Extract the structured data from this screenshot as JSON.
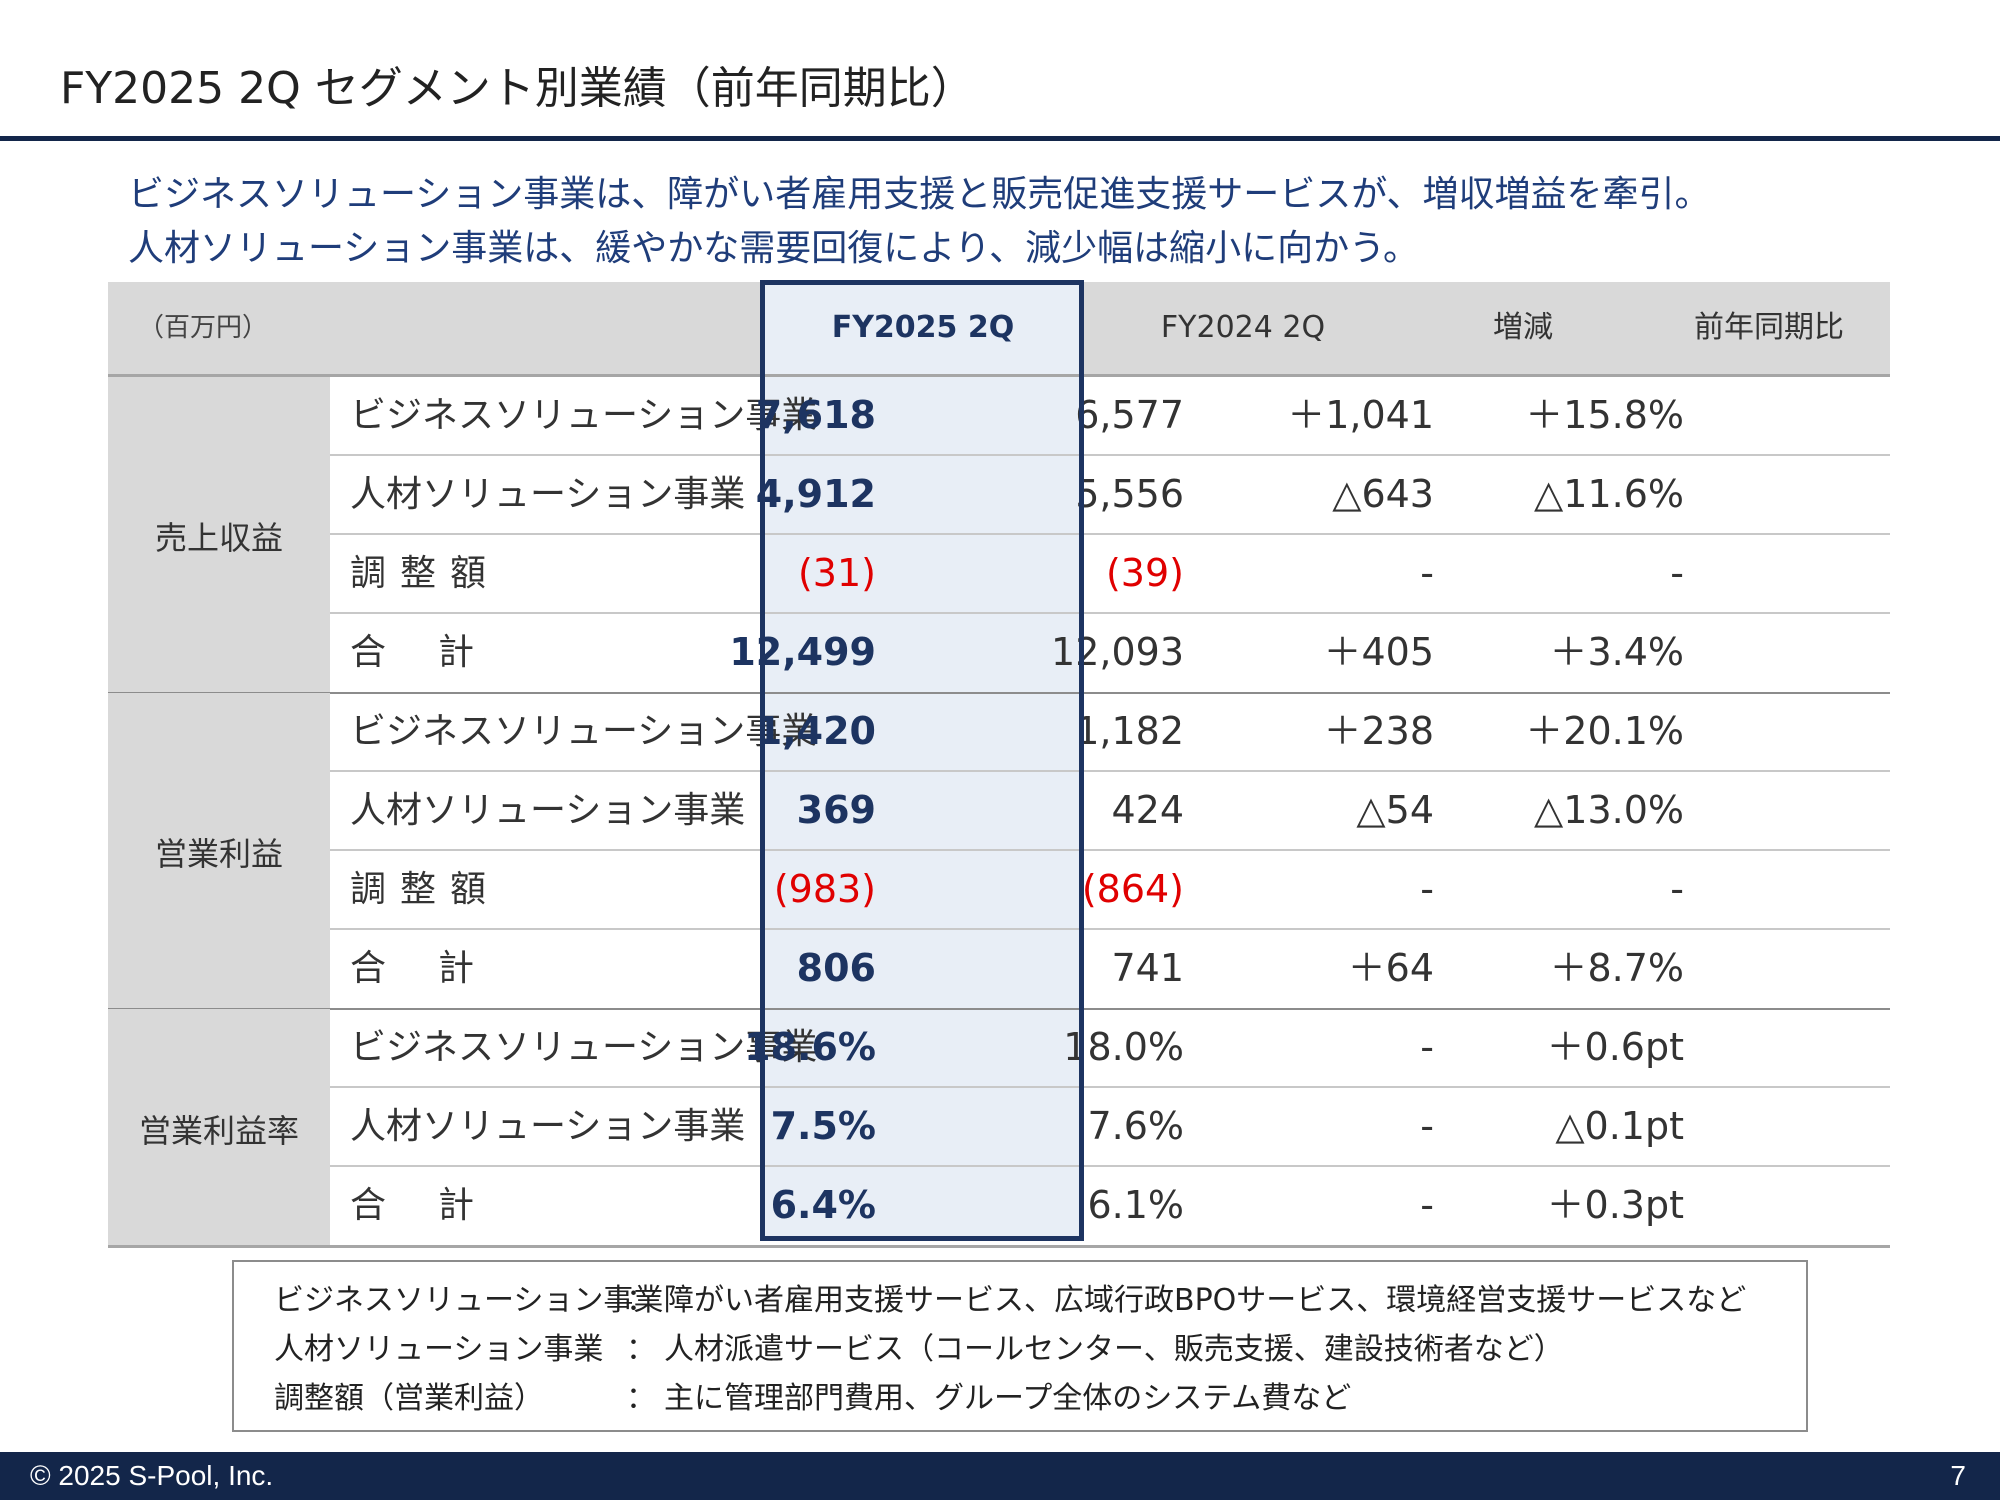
{
  "slide": {
    "title": "FY2025 2Q セグメント別業績（前年同期比）",
    "subtitle_lines": [
      "ビジネスソリューション事業は、障がい者雇用支援と販売促進支援サービスが、増収増益を牽引。",
      "人材ソリューション事業は、緩やかな需要回復により、減少幅は縮小に向かう。"
    ]
  },
  "table": {
    "unit": "（百万円）",
    "headers": [
      "FY2025 2Q",
      "FY2024 2Q",
      "増減",
      "前年同期比"
    ],
    "groups": [
      {
        "label": "売上収益",
        "rows": [
          {
            "label": "ビジネスソリューション事業",
            "cur": "7,618",
            "prev": "6,577",
            "diff": "＋1,041",
            "ratio": "＋15.8%"
          },
          {
            "label": "人材ソリューション事業",
            "cur": "4,912",
            "prev": "5,556",
            "diff": "△643",
            "ratio": "△11.6%"
          },
          {
            "label": "調整額",
            "cur": "(31)",
            "prev": "(39)",
            "diff": "-",
            "ratio": "-"
          },
          {
            "label": "合計",
            "cur": "12,499",
            "prev": "12,093",
            "diff": "＋405",
            "ratio": "＋3.4%"
          }
        ]
      },
      {
        "label": "営業利益",
        "rows": [
          {
            "label": "ビジネスソリューション事業",
            "cur": "1,420",
            "prev": "1,182",
            "diff": "＋238",
            "ratio": "＋20.1%"
          },
          {
            "label": "人材ソリューション事業",
            "cur": "369",
            "prev": "424",
            "diff": "△54",
            "ratio": "△13.0%"
          },
          {
            "label": "調整額",
            "cur": "(983)",
            "prev": "(864)",
            "diff": "-",
            "ratio": "-"
          },
          {
            "label": "合計",
            "cur": "806",
            "prev": "741",
            "diff": "＋64",
            "ratio": "＋8.7%"
          }
        ]
      },
      {
        "label": "営業利益率",
        "rows": [
          {
            "label": "ビジネスソリューション事業",
            "cur": "18.6%",
            "prev": "18.0%",
            "diff": "-",
            "ratio": "＋0.6pt"
          },
          {
            "label": "人材ソリューション事業",
            "cur": "7.5%",
            "prev": "7.6%",
            "diff": "-",
            "ratio": "△0.1pt"
          },
          {
            "label": "合計",
            "cur": "6.4%",
            "prev": "6.1%",
            "diff": "-",
            "ratio": "＋0.3pt"
          }
        ]
      }
    ]
  },
  "notes": [
    {
      "term": "ビジネスソリューション事業",
      "colon": "：",
      "desc": "障がい者雇用支援サービス、広域行政BPOサービス、環境経営支援サービスなど"
    },
    {
      "term": "人材ソリューション事業",
      "colon": "：",
      "desc": "人材派遣サービス（コールセンター、販売支援、建設技術者など）"
    },
    {
      "term": "調整額（営業利益）",
      "colon": "：",
      "desc": "主に管理部門費用、グループ全体のシステム費など"
    }
  ],
  "footer": {
    "copyright": "© 2025  S-Pool, Inc.",
    "page": "7"
  },
  "colors": {
    "navy": "#13264a",
    "accent_text": "#1d3461",
    "subtitle_blue": "#1f3d7a",
    "negative_red": "#e00000",
    "header_gray": "#d9d9d9",
    "highlight_col": "#e8eef6"
  }
}
